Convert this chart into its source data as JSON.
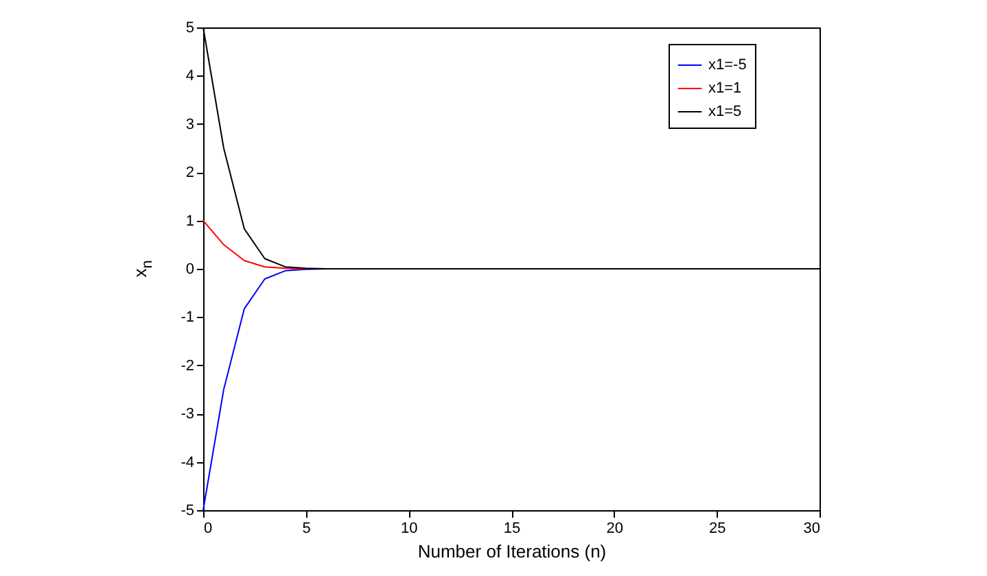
{
  "chart_data": {
    "type": "line",
    "xlabel": "Number of Iterations (n)",
    "ylabel": "x$_{n}$",
    "x": [
      0,
      1,
      2,
      3,
      4,
      5,
      6,
      7,
      8,
      9,
      10,
      11,
      12,
      13,
      14,
      15,
      16,
      17,
      18,
      19,
      20,
      21,
      22,
      23,
      24,
      25,
      26,
      27,
      28,
      29,
      30
    ],
    "series": [
      {
        "name": "x1=-5",
        "color": "#0000ff",
        "values": [
          -5,
          -2.5,
          -0.83,
          -0.21,
          -0.04,
          -0.01,
          0,
          null,
          null,
          null,
          null,
          null,
          null,
          null,
          null,
          null,
          null,
          null,
          null,
          null,
          null,
          null,
          null,
          null,
          null,
          null,
          null,
          null,
          null,
          null,
          null
        ]
      },
      {
        "name": "x1=1",
        "color": "#ff0000",
        "values": [
          1,
          0.5,
          0.17,
          0.04,
          0.01,
          0,
          null,
          null,
          null,
          null,
          null,
          null,
          null,
          null,
          null,
          null,
          null,
          null,
          null,
          null,
          null,
          null,
          null,
          null,
          null,
          null,
          null,
          null,
          null,
          null,
          null
        ]
      },
      {
        "name": "x1=5",
        "color": "#000000",
        "values": [
          5,
          2.5,
          0.83,
          0.21,
          0.04,
          0.01,
          0,
          0,
          0,
          0,
          0,
          0,
          0,
          0,
          0,
          0,
          0,
          0,
          0,
          0,
          0,
          0,
          0,
          0,
          0,
          0,
          0,
          0,
          0,
          0,
          0
        ]
      }
    ],
    "xlim": [
      0,
      30
    ],
    "xticks": [
      0,
      5,
      10,
      15,
      20,
      25,
      30
    ],
    "ylim": [
      -5,
      5
    ],
    "yticks": [
      -5,
      -4,
      -3,
      -2,
      -1,
      0,
      1,
      2,
      3,
      4,
      5
    ],
    "grid": false,
    "legend": "top right",
    "marker": "none",
    "line_style": "solid"
  }
}
